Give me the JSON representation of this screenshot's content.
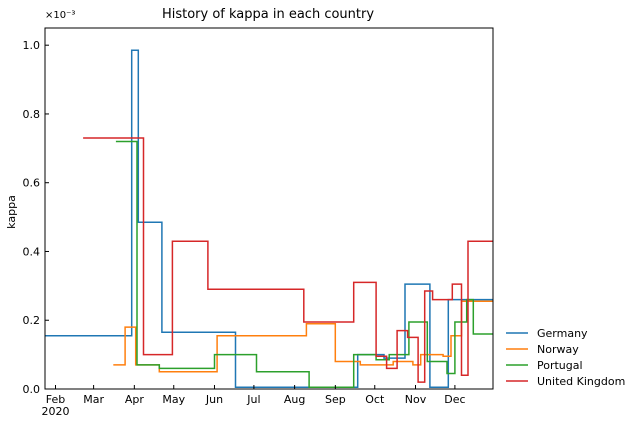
{
  "chart_data": {
    "type": "line",
    "title": "History of kappa in each country",
    "ylabel": "kappa",
    "xlabel": "",
    "y_scale_label": "×10⁻³",
    "ylim": [
      0,
      1.05
    ],
    "xlim": [
      "2020-01-24",
      "2020-12-30"
    ],
    "x_ticks": [
      {
        "date": "2020-02-01",
        "label": "Feb",
        "sublabel": "2020"
      },
      {
        "date": "2020-03-01",
        "label": "Mar",
        "sublabel": ""
      },
      {
        "date": "2020-04-01",
        "label": "Apr",
        "sublabel": ""
      },
      {
        "date": "2020-05-01",
        "label": "May",
        "sublabel": ""
      },
      {
        "date": "2020-06-01",
        "label": "Jun",
        "sublabel": ""
      },
      {
        "date": "2020-07-01",
        "label": "Jul",
        "sublabel": ""
      },
      {
        "date": "2020-08-01",
        "label": "Aug",
        "sublabel": ""
      },
      {
        "date": "2020-09-01",
        "label": "Sep",
        "sublabel": ""
      },
      {
        "date": "2020-10-01",
        "label": "Oct",
        "sublabel": ""
      },
      {
        "date": "2020-11-01",
        "label": "Nov",
        "sublabel": ""
      },
      {
        "date": "2020-12-01",
        "label": "Dec",
        "sublabel": ""
      }
    ],
    "y_ticks": [
      {
        "value": 0.0,
        "label": "0.0"
      },
      {
        "value": 0.2,
        "label": "0.2"
      },
      {
        "value": 0.4,
        "label": "0.4"
      },
      {
        "value": 0.6,
        "label": "0.6"
      },
      {
        "value": 0.8,
        "label": "0.8"
      },
      {
        "value": 1.0,
        "label": "1.0"
      }
    ],
    "legend_position": "right-bottom, outside plot",
    "series": [
      {
        "name": "Germany",
        "color": "#1f77b4",
        "points": [
          [
            "2020-01-24",
            0.155
          ],
          [
            "2020-03-30",
            0.155
          ],
          [
            "2020-03-30",
            0.985
          ],
          [
            "2020-04-02",
            0.985
          ],
          [
            "2020-04-02",
            0.985
          ],
          [
            "2020-04-04",
            0.985
          ],
          [
            "2020-04-04",
            0.485
          ],
          [
            "2020-04-22",
            0.485
          ],
          [
            "2020-04-22",
            0.165
          ],
          [
            "2020-06-17",
            0.165
          ],
          [
            "2020-06-17",
            0.005
          ],
          [
            "2020-09-18",
            0.005
          ],
          [
            "2020-09-18",
            0.1
          ],
          [
            "2020-10-08",
            0.1
          ],
          [
            "2020-10-08",
            0.09
          ],
          [
            "2020-10-24",
            0.09
          ],
          [
            "2020-10-24",
            0.305
          ],
          [
            "2020-11-12",
            0.305
          ],
          [
            "2020-11-12",
            0.005
          ],
          [
            "2020-11-26",
            0.005
          ],
          [
            "2020-11-26",
            0.26
          ],
          [
            "2020-12-30",
            0.26
          ]
        ]
      },
      {
        "name": "Norway",
        "color": "#ff7f0e",
        "points": [
          [
            "2020-03-16",
            0.07
          ],
          [
            "2020-03-25",
            0.07
          ],
          [
            "2020-03-25",
            0.18
          ],
          [
            "2020-04-02",
            0.18
          ],
          [
            "2020-04-02",
            0.07
          ],
          [
            "2020-04-20",
            0.07
          ],
          [
            "2020-04-20",
            0.05
          ],
          [
            "2020-06-03",
            0.05
          ],
          [
            "2020-06-03",
            0.155
          ],
          [
            "2020-08-10",
            0.155
          ],
          [
            "2020-08-10",
            0.19
          ],
          [
            "2020-09-01",
            0.19
          ],
          [
            "2020-09-01",
            0.08
          ],
          [
            "2020-09-20",
            0.08
          ],
          [
            "2020-09-20",
            0.07
          ],
          [
            "2020-10-15",
            0.07
          ],
          [
            "2020-10-15",
            0.08
          ],
          [
            "2020-10-30",
            0.08
          ],
          [
            "2020-10-30",
            0.07
          ],
          [
            "2020-11-05",
            0.07
          ],
          [
            "2020-11-05",
            0.1
          ],
          [
            "2020-11-22",
            0.1
          ],
          [
            "2020-11-22",
            0.095
          ],
          [
            "2020-11-28",
            0.095
          ],
          [
            "2020-11-28",
            0.155
          ],
          [
            "2020-12-06",
            0.155
          ],
          [
            "2020-12-06",
            0.255
          ],
          [
            "2020-12-30",
            0.255
          ]
        ]
      },
      {
        "name": "Portugal",
        "color": "#2ca02c",
        "points": [
          [
            "2020-03-18",
            0.72
          ],
          [
            "2020-04-03",
            0.72
          ],
          [
            "2020-04-03",
            0.07
          ],
          [
            "2020-04-20",
            0.07
          ],
          [
            "2020-04-20",
            0.06
          ],
          [
            "2020-06-01",
            0.06
          ],
          [
            "2020-06-01",
            0.1
          ],
          [
            "2020-07-03",
            0.1
          ],
          [
            "2020-07-03",
            0.05
          ],
          [
            "2020-08-12",
            0.05
          ],
          [
            "2020-08-12",
            0.005
          ],
          [
            "2020-09-15",
            0.005
          ],
          [
            "2020-09-15",
            0.1
          ],
          [
            "2020-10-02",
            0.1
          ],
          [
            "2020-10-02",
            0.085
          ],
          [
            "2020-10-12",
            0.085
          ],
          [
            "2020-10-12",
            0.1
          ],
          [
            "2020-10-27",
            0.1
          ],
          [
            "2020-10-27",
            0.195
          ],
          [
            "2020-11-10",
            0.195
          ],
          [
            "2020-11-10",
            0.08
          ],
          [
            "2020-11-25",
            0.08
          ],
          [
            "2020-11-25",
            0.045
          ],
          [
            "2020-12-01",
            0.045
          ],
          [
            "2020-12-01",
            0.195
          ],
          [
            "2020-12-10",
            0.195
          ],
          [
            "2020-12-10",
            0.26
          ],
          [
            "2020-12-15",
            0.26
          ],
          [
            "2020-12-15",
            0.16
          ],
          [
            "2020-12-30",
            0.16
          ]
        ]
      },
      {
        "name": "United Kingdom",
        "color": "#d62728",
        "points": [
          [
            "2020-02-22",
            0.73
          ],
          [
            "2020-04-08",
            0.73
          ],
          [
            "2020-04-08",
            0.1
          ],
          [
            "2020-04-30",
            0.1
          ],
          [
            "2020-04-30",
            0.43
          ],
          [
            "2020-05-27",
            0.43
          ],
          [
            "2020-05-27",
            0.29
          ],
          [
            "2020-08-08",
            0.29
          ],
          [
            "2020-08-08",
            0.195
          ],
          [
            "2020-09-15",
            0.195
          ],
          [
            "2020-09-15",
            0.31
          ],
          [
            "2020-10-02",
            0.31
          ],
          [
            "2020-10-02",
            0.095
          ],
          [
            "2020-10-10",
            0.095
          ],
          [
            "2020-10-10",
            0.06
          ],
          [
            "2020-10-18",
            0.06
          ],
          [
            "2020-10-18",
            0.17
          ],
          [
            "2020-10-26",
            0.17
          ],
          [
            "2020-10-26",
            0.15
          ],
          [
            "2020-11-03",
            0.15
          ],
          [
            "2020-11-03",
            0.02
          ],
          [
            "2020-11-08",
            0.02
          ],
          [
            "2020-11-08",
            0.285
          ],
          [
            "2020-11-14",
            0.285
          ],
          [
            "2020-11-14",
            0.26
          ],
          [
            "2020-11-29",
            0.26
          ],
          [
            "2020-11-29",
            0.305
          ],
          [
            "2020-12-06",
            0.305
          ],
          [
            "2020-12-06",
            0.04
          ],
          [
            "2020-12-11",
            0.04
          ],
          [
            "2020-12-11",
            0.43
          ],
          [
            "2020-12-30",
            0.43
          ]
        ]
      }
    ]
  }
}
